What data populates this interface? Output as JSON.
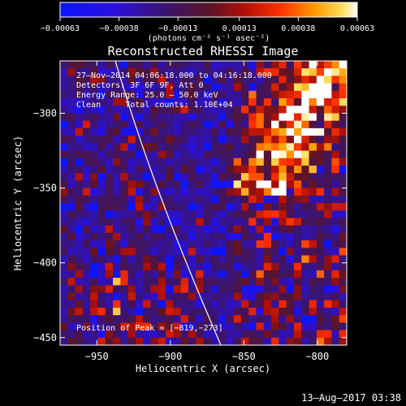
{
  "chart_data": {
    "type": "heatmap",
    "title": "Reconstructed RHESSI Image",
    "xlabel": "Heliocentric X (arcsec)",
    "ylabel": "Heliocentric Y (arcsec)",
    "xlim": [
      -975,
      -780
    ],
    "ylim": [
      -455,
      -265
    ],
    "x_ticks": [
      -950,
      -900,
      -850,
      -800
    ],
    "x_tick_labels": [
      "−950",
      "−900",
      "−850",
      "−800"
    ],
    "y_ticks": [
      -300,
      -350,
      -400,
      -450
    ],
    "y_tick_labels": [
      "−300",
      "−350",
      "−400",
      "−450"
    ],
    "colorbar": {
      "min": -0.00063,
      "max": 0.00063,
      "tick_values": [
        -0.00063,
        -0.00038,
        -0.00013,
        0.00013,
        0.00038,
        0.00063
      ],
      "tick_labels": [
        "−0.00063",
        "−0.00038",
        "−0.00013",
        "0.00013",
        "0.00038",
        "0.00063"
      ],
      "units": "(photons cm⁻² s⁻¹ asec⁻²)"
    },
    "annotations": [
      "27–Nov–2014 04:06:18.000 to 04:16:18.000",
      "Detectors: 3F 6F 9F, Att 0",
      "Energy Range: 25.0 – 50.0 keV",
      "Clean     Total counts: 1.10E+04"
    ],
    "peak_label": "Position of Peak = [−819,−273]",
    "peak_position": [
      -819,
      -273
    ]
  },
  "footer": {
    "date": "13–Aug–2017 03:38"
  }
}
